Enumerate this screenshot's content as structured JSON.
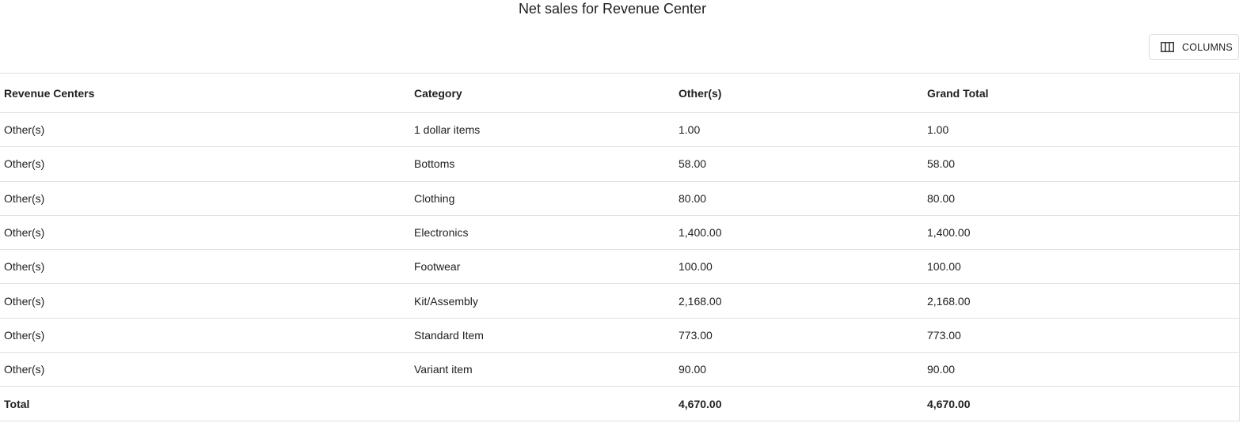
{
  "page": {
    "title": "Net sales for Revenue Center"
  },
  "toolbar": {
    "columns_label": "COLUMNS",
    "columns_icon": "view-column-icon"
  },
  "table": {
    "headers": [
      "Revenue Centers",
      "Category",
      "Other(s)",
      "Grand Total"
    ],
    "rows": [
      [
        "Other(s)",
        "1 dollar items",
        "1.00",
        "1.00"
      ],
      [
        "Other(s)",
        "Bottoms",
        "58.00",
        "58.00"
      ],
      [
        "Other(s)",
        "Clothing",
        "80.00",
        "80.00"
      ],
      [
        "Other(s)",
        "Electronics",
        "1,400.00",
        "1,400.00"
      ],
      [
        "Other(s)",
        "Footwear",
        "100.00",
        "100.00"
      ],
      [
        "Other(s)",
        "Kit/Assembly",
        "2,168.00",
        "2,168.00"
      ],
      [
        "Other(s)",
        "Standard Item",
        "773.00",
        "773.00"
      ],
      [
        "Other(s)",
        "Variant item",
        "90.00",
        "90.00"
      ]
    ],
    "total": [
      "Total",
      "",
      "4,670.00",
      "4,670.00"
    ]
  }
}
